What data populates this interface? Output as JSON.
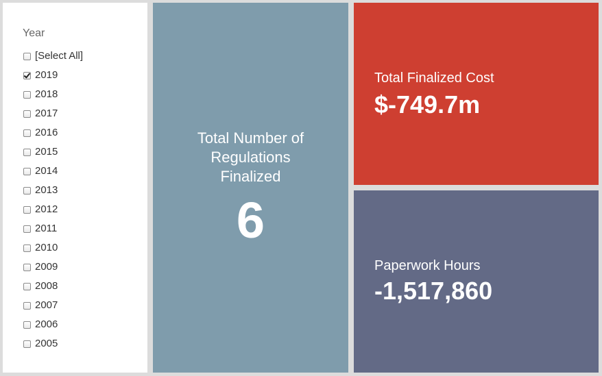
{
  "filter": {
    "title": "Year",
    "items": [
      {
        "label": "[Select All]",
        "checked": false
      },
      {
        "label": "2019",
        "checked": true
      },
      {
        "label": "2018",
        "checked": false
      },
      {
        "label": "2017",
        "checked": false
      },
      {
        "label": "2016",
        "checked": false
      },
      {
        "label": "2015",
        "checked": false
      },
      {
        "label": "2014",
        "checked": false
      },
      {
        "label": "2013",
        "checked": false
      },
      {
        "label": "2012",
        "checked": false
      },
      {
        "label": "2011",
        "checked": false
      },
      {
        "label": "2010",
        "checked": false
      },
      {
        "label": "2009",
        "checked": false
      },
      {
        "label": "2008",
        "checked": false
      },
      {
        "label": "2007",
        "checked": false
      },
      {
        "label": "2006",
        "checked": false
      },
      {
        "label": "2005",
        "checked": false
      }
    ]
  },
  "tiles": {
    "regulations": {
      "label": "Total Number of Regulations Finalized",
      "value": "6",
      "color": "#7f9cac"
    },
    "cost": {
      "label": "Total Finalized Cost",
      "value": "$-749.7m",
      "color": "#ce3f31"
    },
    "hours": {
      "label": "Paperwork Hours",
      "value": "-1,517,860",
      "color": "#636a86"
    }
  }
}
